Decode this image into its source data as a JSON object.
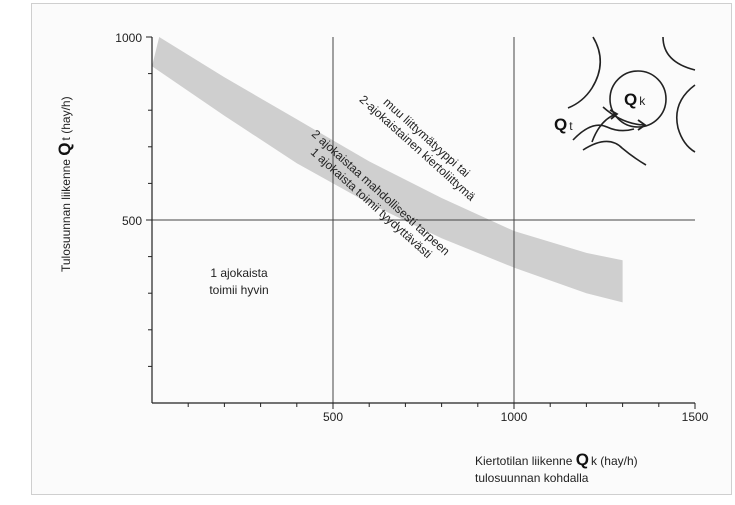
{
  "chart_data": {
    "type": "area",
    "xlim": [
      0,
      1500
    ],
    "ylim": [
      0,
      1000
    ],
    "x_ticks": [
      "500",
      "1000",
      "1500"
    ],
    "y_ticks": [
      "500",
      "1000"
    ],
    "grid": true,
    "band": {
      "upper": [
        [
          20,
          1000
        ],
        [
          200,
          890
        ],
        [
          400,
          775
        ],
        [
          600,
          660
        ],
        [
          800,
          560
        ],
        [
          1000,
          470
        ],
        [
          1200,
          410
        ],
        [
          1300,
          390
        ]
      ],
      "lower": [
        [
          0,
          920
        ],
        [
          200,
          785
        ],
        [
          400,
          655
        ],
        [
          600,
          545
        ],
        [
          800,
          450
        ],
        [
          1000,
          370
        ],
        [
          1200,
          300
        ],
        [
          1300,
          275
        ]
      ],
      "color": "#cfcfcf"
    },
    "ylabel": {
      "prefix": "Tulosuunnan liikenne ",
      "symbol": "Q",
      "sub": "t",
      "suffix": "  (hay/h)"
    },
    "xlabel": {
      "prefix": "Kiertotilan liikenne ",
      "symbol": "Q",
      "sub": "k",
      "suffix": "  (hay/h)",
      "line2": "tulosuunnan kohdalla"
    },
    "annotations": {
      "bottom_left_1": "1 ajokaista",
      "bottom_left_2": "toimii hyvin",
      "band_1": "2 ajokaistaa mahdollisesti tarpeen",
      "band_2": "1 ajokaista toimii tyydyttävästi",
      "top_1": "muu liittymätyyppi tai",
      "top_2": "2-ajokaistainen kiertoliittymä"
    },
    "inset": {
      "qt_symbol": "Q",
      "qt_sub": "t",
      "qk_symbol": "Q",
      "qk_sub": "k"
    }
  }
}
